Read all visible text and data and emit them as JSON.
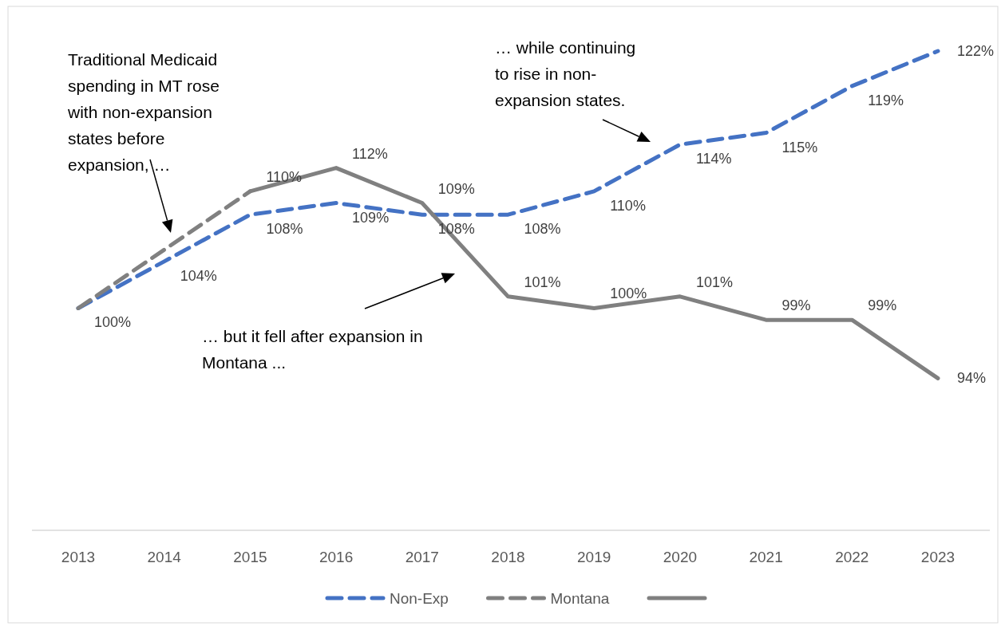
{
  "chart_data": {
    "type": "line",
    "categories": [
      "2013",
      "2014",
      "2015",
      "2016",
      "2017",
      "2018",
      "2019",
      "2020",
      "2021",
      "2022",
      "2023"
    ],
    "tick_labels": "x",
    "legend": "bottom",
    "series": [
      {
        "name": "Non-Exp",
        "color": "#4472c4",
        "line_style": "dashed",
        "values": [
          100,
          104,
          108,
          109,
          108,
          108,
          110,
          114,
          115,
          119,
          122
        ],
        "value_labels": [
          "100%",
          "104%",
          "108%",
          "109%",
          "108%",
          "108%",
          "110%",
          "114%",
          "115%",
          "119%",
          "122%"
        ]
      },
      {
        "name": "Montana",
        "color": "#808080",
        "line_style": "dashed",
        "values": [
          100,
          105,
          110,
          null,
          null,
          null,
          null,
          null,
          null,
          null,
          null
        ]
      },
      {
        "color": "#808080",
        "line_style": "solid",
        "values": [
          null,
          null,
          110,
          112,
          109,
          101,
          100,
          101,
          99,
          99,
          94
        ],
        "value_labels": [
          null,
          null,
          "110%",
          "112%",
          "109%",
          "101%",
          "100%",
          "101%",
          "99%",
          "99%",
          "94%"
        ]
      }
    ],
    "annotations": [
      "Traditional Medicaid\nspending in MT rose\nwith non-expansion\nstates before\nexpansion, …",
      "… while continuing\nto rise in non-\nexpansion states.",
      "… but it fell after expansion in\nMontana ..."
    ]
  }
}
